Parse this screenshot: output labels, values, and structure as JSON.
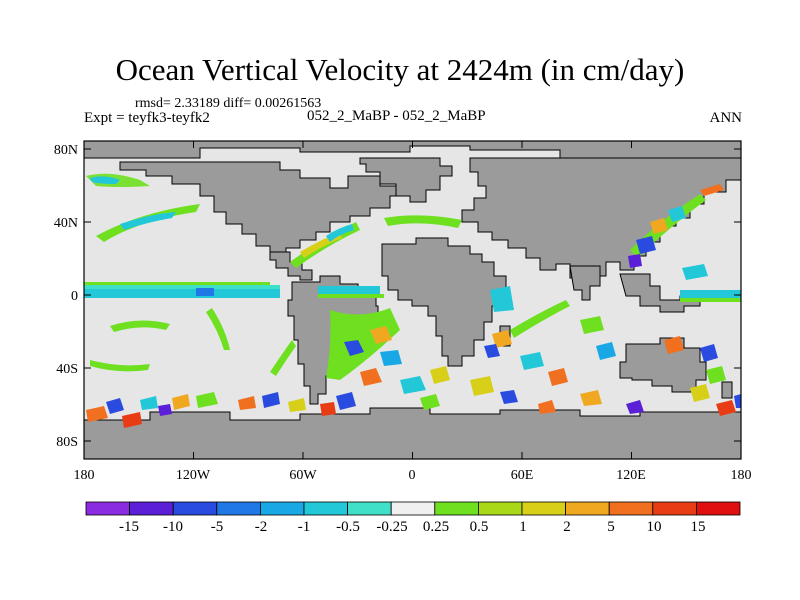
{
  "title": "Ocean Vertical Velocity at 2424m (in cm/day)",
  "stats": "rmsd= 2.33189 diff= 0.00261563",
  "experiment": "Expt = teyfk3-teyfk2",
  "case": "052_2_MaBP - 052_2_MaBP",
  "season": "ANN",
  "map": {
    "lon_ticks": [
      "180",
      "120W",
      "60W",
      "0",
      "60E",
      "120E",
      "180"
    ],
    "lat_ticks": [
      "80N",
      "40N",
      "0",
      "40S",
      "80S"
    ],
    "land_color": "#9b9b9b",
    "ocean_neutral_color": "#e6e6e6"
  },
  "colorbar": {
    "labels": [
      "-15",
      "-10",
      "-5",
      "-2",
      "-1",
      "-0.5",
      "-0.25",
      "0.25",
      "0.5",
      "1",
      "2",
      "5",
      "10",
      "15"
    ],
    "colors": [
      "#8a2be2",
      "#5a1fd6",
      "#2a4be0",
      "#1f78e6",
      "#18a8e6",
      "#22c8d8",
      "#40e0c8",
      "#f0f0f0",
      "#6ee020",
      "#a8d818",
      "#d8d018",
      "#f0a820",
      "#f07020",
      "#e83c14",
      "#e01010"
    ]
  }
}
